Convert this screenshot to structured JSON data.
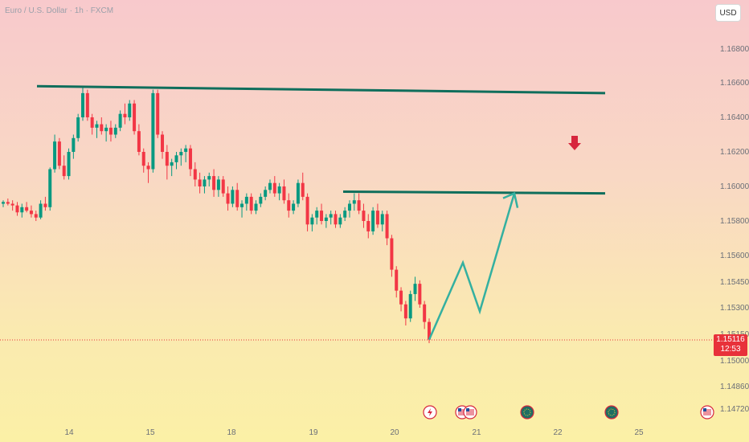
{
  "chart_data": {
    "type": "candlestick",
    "title": "Euro / U.S. Dollar · 1h · FXCM",
    "currency": "USD",
    "last_price": "1.15116",
    "countdown": "12:53",
    "y_ticks": [
      "1.16800",
      "1.16600",
      "1.16400",
      "1.16200",
      "1.16000",
      "1.15800",
      "1.15600",
      "1.15450",
      "1.15300",
      "1.15150",
      "1.15000",
      "1.14860",
      "1.14720"
    ],
    "x_ticks": [
      "14",
      "15",
      "18",
      "19",
      "20",
      "21",
      "22",
      "25"
    ],
    "colors": {
      "up": "#089981",
      "down": "#f23645",
      "line": "#0f6e5c",
      "arrow": "#34b0a0",
      "red_arrow": "#d7263d",
      "price_line": "#e8313a"
    },
    "y_range": [
      1.1472,
      1.17
    ],
    "candles": [
      [
        1.159,
        1.1592,
        1.1588,
        1.1591
      ],
      [
        1.1591,
        1.1593,
        1.1589,
        1.159
      ],
      [
        1.159,
        1.1592,
        1.1586,
        1.1589
      ],
      [
        1.1589,
        1.1591,
        1.1583,
        1.1585
      ],
      [
        1.1585,
        1.159,
        1.1582,
        1.1588
      ],
      [
        1.1588,
        1.1591,
        1.1585,
        1.1586
      ],
      [
        1.1586,
        1.1589,
        1.1582,
        1.1584
      ],
      [
        1.1584,
        1.1586,
        1.158,
        1.1582
      ],
      [
        1.1582,
        1.1592,
        1.1581,
        1.159
      ],
      [
        1.159,
        1.1594,
        1.1586,
        1.1588
      ],
      [
        1.1588,
        1.1611,
        1.1586,
        1.161
      ],
      [
        1.161,
        1.163,
        1.1608,
        1.1626
      ],
      [
        1.1626,
        1.1628,
        1.161,
        1.1612
      ],
      [
        1.1612,
        1.1618,
        1.1604,
        1.1606
      ],
      [
        1.1606,
        1.1622,
        1.1604,
        1.162
      ],
      [
        1.162,
        1.163,
        1.1616,
        1.1628
      ],
      [
        1.1628,
        1.1642,
        1.1626,
        1.164
      ],
      [
        1.164,
        1.1658,
        1.1638,
        1.1654
      ],
      [
        1.1654,
        1.1656,
        1.1638,
        1.164
      ],
      [
        1.164,
        1.1642,
        1.163,
        1.1634
      ],
      [
        1.1634,
        1.1638,
        1.1628,
        1.1636
      ],
      [
        1.1636,
        1.164,
        1.163,
        1.1632
      ],
      [
        1.1632,
        1.1636,
        1.1626,
        1.1634
      ],
      [
        1.1634,
        1.1638,
        1.1626,
        1.163
      ],
      [
        1.163,
        1.1636,
        1.1628,
        1.1634
      ],
      [
        1.1634,
        1.1644,
        1.1632,
        1.1642
      ],
      [
        1.1642,
        1.1648,
        1.1636,
        1.164
      ],
      [
        1.164,
        1.165,
        1.1638,
        1.1648
      ],
      [
        1.1648,
        1.165,
        1.163,
        1.1632
      ],
      [
        1.1632,
        1.1636,
        1.1618,
        1.162
      ],
      [
        1.162,
        1.1622,
        1.1608,
        1.1612
      ],
      [
        1.1612,
        1.1614,
        1.1602,
        1.161
      ],
      [
        1.161,
        1.1656,
        1.1608,
        1.1654
      ],
      [
        1.1654,
        1.1656,
        1.1628,
        1.163
      ],
      [
        1.163,
        1.1632,
        1.1616,
        1.162
      ],
      [
        1.162,
        1.1624,
        1.1604,
        1.1612
      ],
      [
        1.1612,
        1.1616,
        1.1606,
        1.1614
      ],
      [
        1.1614,
        1.162,
        1.161,
        1.1618
      ],
      [
        1.1618,
        1.1622,
        1.1612,
        1.162
      ],
      [
        1.162,
        1.1624,
        1.1614,
        1.1622
      ],
      [
        1.1622,
        1.1624,
        1.1606,
        1.161
      ],
      [
        1.161,
        1.1614,
        1.16,
        1.1604
      ],
      [
        1.1604,
        1.1608,
        1.1596,
        1.16
      ],
      [
        1.16,
        1.1606,
        1.1596,
        1.1604
      ],
      [
        1.1604,
        1.1608,
        1.16,
        1.1606
      ],
      [
        1.1606,
        1.161,
        1.1594,
        1.1598
      ],
      [
        1.1598,
        1.1606,
        1.1594,
        1.1604
      ],
      [
        1.1604,
        1.1606,
        1.1594,
        1.1596
      ],
      [
        1.1596,
        1.16,
        1.1586,
        1.159
      ],
      [
        1.159,
        1.16,
        1.1588,
        1.1598
      ],
      [
        1.1598,
        1.1602,
        1.1586,
        1.1588
      ],
      [
        1.1588,
        1.1592,
        1.1582,
        1.159
      ],
      [
        1.159,
        1.1596,
        1.1586,
        1.1594
      ],
      [
        1.1594,
        1.1596,
        1.1584,
        1.1586
      ],
      [
        1.1586,
        1.1592,
        1.1584,
        1.159
      ],
      [
        1.159,
        1.1596,
        1.1588,
        1.1594
      ],
      [
        1.1594,
        1.16,
        1.1592,
        1.1598
      ],
      [
        1.1598,
        1.1604,
        1.1596,
        1.1602
      ],
      [
        1.1602,
        1.1606,
        1.1594,
        1.1596
      ],
      [
        1.1596,
        1.1602,
        1.1592,
        1.16
      ],
      [
        1.16,
        1.1604,
        1.159,
        1.1592
      ],
      [
        1.1592,
        1.1596,
        1.1582,
        1.1586
      ],
      [
        1.1586,
        1.1592,
        1.1584,
        1.159
      ],
      [
        1.159,
        1.1604,
        1.1588,
        1.1602
      ],
      [
        1.1602,
        1.1608,
        1.1592,
        1.1594
      ],
      [
        1.1594,
        1.1596,
        1.1574,
        1.1578
      ],
      [
        1.1578,
        1.1584,
        1.1574,
        1.1582
      ],
      [
        1.1582,
        1.1588,
        1.1578,
        1.1586
      ],
      [
        1.1586,
        1.159,
        1.1578,
        1.158
      ],
      [
        1.158,
        1.1584,
        1.1576,
        1.1582
      ],
      [
        1.1582,
        1.1586,
        1.1578,
        1.1584
      ],
      [
        1.1584,
        1.1586,
        1.1576,
        1.1578
      ],
      [
        1.1578,
        1.1584,
        1.1576,
        1.1582
      ],
      [
        1.1582,
        1.1588,
        1.158,
        1.1586
      ],
      [
        1.1586,
        1.1592,
        1.1582,
        1.159
      ],
      [
        1.159,
        1.1596,
        1.1586,
        1.1592
      ],
      [
        1.1592,
        1.1596,
        1.1584,
        1.1586
      ],
      [
        1.1586,
        1.159,
        1.1576,
        1.158
      ],
      [
        1.158,
        1.1584,
        1.157,
        1.1574
      ],
      [
        1.1574,
        1.1588,
        1.1572,
        1.1586
      ],
      [
        1.1586,
        1.159,
        1.1576,
        1.1578
      ],
      [
        1.1578,
        1.1586,
        1.1574,
        1.1584
      ],
      [
        1.1584,
        1.1586,
        1.1566,
        1.157
      ],
      [
        1.157,
        1.1572,
        1.1548,
        1.1552
      ],
      [
        1.1552,
        1.1554,
        1.1536,
        1.154
      ],
      [
        1.154,
        1.1542,
        1.1528,
        1.1532
      ],
      [
        1.1532,
        1.1534,
        1.152,
        1.1524
      ],
      [
        1.1524,
        1.154,
        1.1522,
        1.1538
      ],
      [
        1.1538,
        1.1548,
        1.1534,
        1.1544
      ],
      [
        1.1544,
        1.1546,
        1.153,
        1.1532
      ],
      [
        1.1532,
        1.1534,
        1.1518,
        1.1522
      ],
      [
        1.1522,
        1.1524,
        1.151,
        1.1512
      ]
    ],
    "levels": [
      {
        "name": "upper-resistance",
        "from": 1.1658,
        "to": 1.1654
      },
      {
        "name": "lower-resistance",
        "from": 1.1597,
        "to": 1.1596
      }
    ],
    "projection": [
      1.1512,
      1.1556,
      1.1528,
      1.1596
    ],
    "events": [
      {
        "name": "lightning-event-icon",
        "at": "20"
      },
      {
        "name": "us-flag-event-icon",
        "at": "21"
      },
      {
        "name": "us-flag-event-icon",
        "at": "21"
      },
      {
        "name": "eu-flag-event-icon",
        "at": "21"
      },
      {
        "name": "eu-flag-event-icon",
        "at": "22"
      },
      {
        "name": "us-flag-event-icon",
        "at": "25"
      }
    ]
  }
}
